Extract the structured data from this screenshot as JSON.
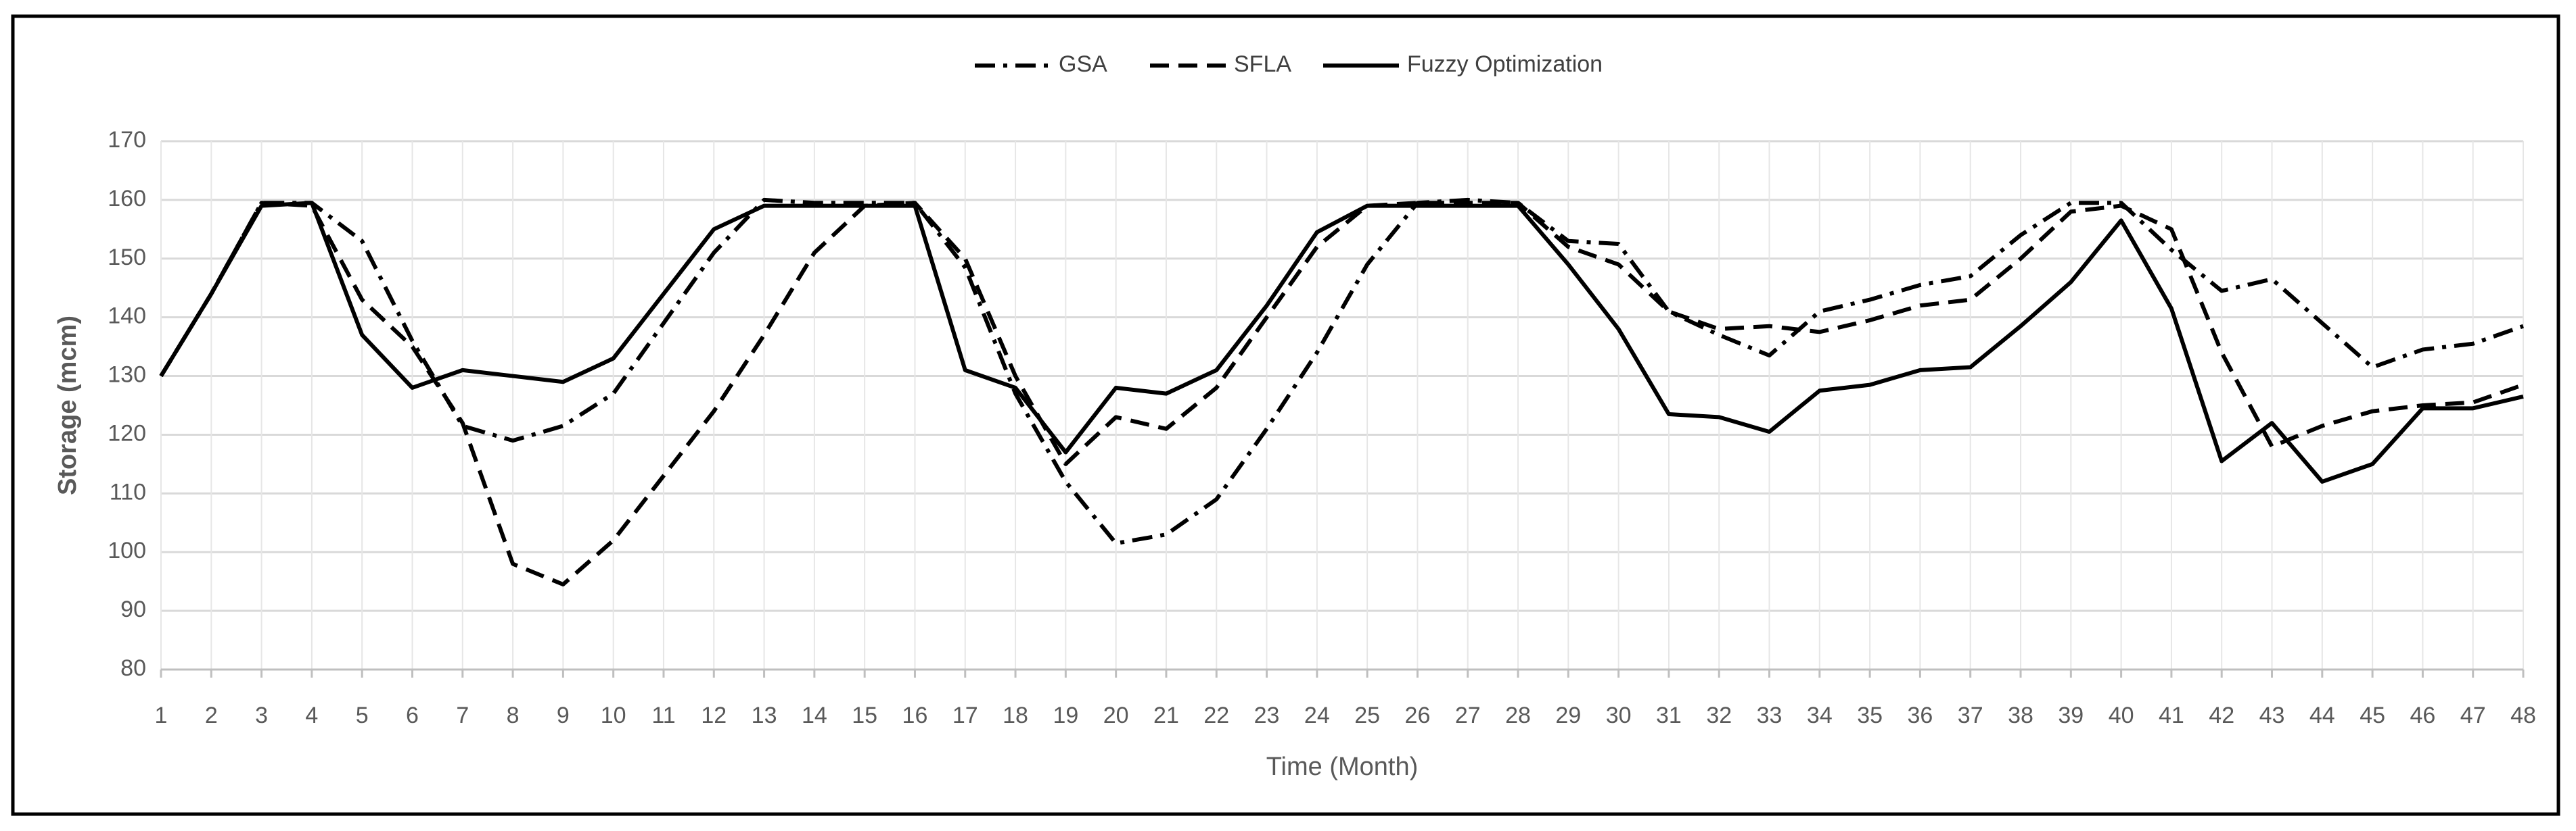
{
  "chart_data": {
    "type": "line",
    "x_label": "Time (Month)",
    "y_label": "Storage (mcm)",
    "categories": [
      "1",
      "2",
      "3",
      "4",
      "5",
      "6",
      "7",
      "8",
      "9",
      "10",
      "11",
      "12",
      "13",
      "14",
      "15",
      "16",
      "17",
      "18",
      "19",
      "20",
      "21",
      "22",
      "23",
      "24",
      "25",
      "26",
      "27",
      "28",
      "29",
      "30",
      "31",
      "32",
      "33",
      "34",
      "35",
      "36",
      "37",
      "38",
      "39",
      "40",
      "41",
      "42",
      "43",
      "44",
      "45",
      "46",
      "47",
      "48"
    ],
    "series": [
      {
        "name": "GSA",
        "color": "#000000",
        "dash": "dashdot",
        "values": [
          130,
          144,
          159.5,
          159.5,
          153,
          136,
          121.5,
          119,
          121.5,
          127,
          139,
          151,
          160,
          159.5,
          159.5,
          159.5,
          148.5,
          127,
          112,
          101.5,
          103,
          109,
          121,
          134,
          149,
          159.5,
          160,
          159.5,
          153,
          152.5,
          141,
          137,
          133.5,
          141,
          143,
          145.5,
          147,
          154,
          159.5,
          159.5,
          151.5,
          144.5,
          146.5,
          139,
          131.5,
          134.5,
          135.5,
          138.5
        ]
      },
      {
        "name": "SFLA",
        "color": "#000000",
        "dash": "dash",
        "values": [
          130,
          144,
          159.5,
          159,
          143,
          135,
          122,
          98,
          94.5,
          102,
          113,
          124,
          137,
          151,
          159,
          159.5,
          150,
          130,
          115,
          123,
          121,
          128,
          140,
          152,
          159,
          159.5,
          159.5,
          159.5,
          152,
          149,
          141,
          138,
          138.5,
          137.5,
          139.5,
          142,
          143,
          150,
          158,
          159,
          155,
          134,
          118,
          121.5,
          124,
          125,
          125.5,
          128.5
        ]
      },
      {
        "name": "Fuzzy Optimization",
        "color": "#000000",
        "dash": "solid",
        "values": [
          130,
          144,
          159,
          159.5,
          137,
          128,
          131,
          130,
          129,
          133,
          144,
          155,
          159,
          159,
          159,
          159,
          131,
          128,
          117,
          128,
          127,
          131,
          142,
          154.5,
          159,
          159,
          159,
          159,
          149,
          138,
          123.5,
          123,
          120.5,
          127.5,
          128.5,
          131,
          131.5,
          138.5,
          146,
          156.5,
          141.5,
          115.5,
          122,
          112,
          115,
          124.5,
          124.5,
          126.5
        ]
      }
    ],
    "ylim": [
      80,
      170
    ],
    "yticks": [
      80,
      90,
      100,
      110,
      120,
      130,
      140,
      150,
      160,
      170
    ],
    "grid": true,
    "legend": "top"
  }
}
